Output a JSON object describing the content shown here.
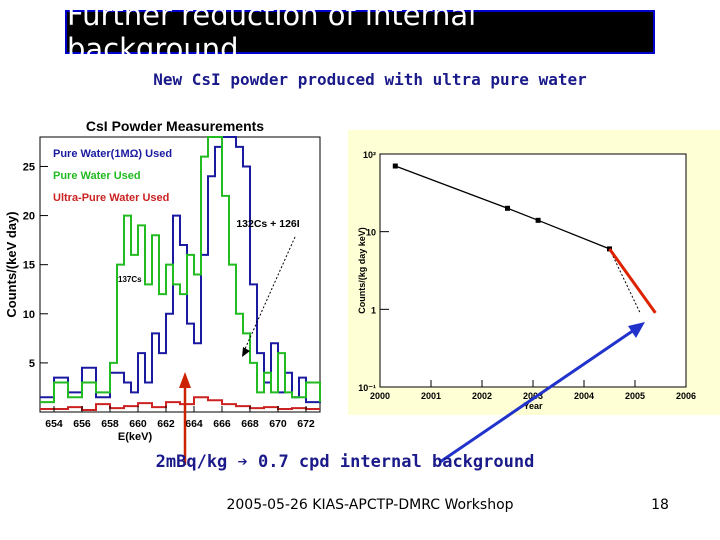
{
  "slide": {
    "title": "Further reduction of internal background",
    "subtitle": "New CsI powder produced with ultra pure water",
    "conclusion": "2mBq/kg ➔ 0.7 cpd internal background",
    "footer": "2005-05-26 KIAS-APCTP-DMRC Workshop",
    "page_number": "18"
  },
  "colors": {
    "title_bg": "#000000",
    "title_border": "#0000cc",
    "text_blue": "#1a1a8a",
    "arrow_red": "#cc2200",
    "arrow_blue": "#2233cc"
  },
  "chart_data": [
    {
      "type": "line",
      "title": "CsI Powder Measurements",
      "xlabel": "E(keV)",
      "ylabel": "Counts/(keV day)",
      "xlim": [
        653,
        673
      ],
      "ylim": [
        0,
        28
      ],
      "x_ticks": [
        "654",
        "656",
        "658",
        "660",
        "662",
        "664",
        "666",
        "668",
        "670",
        "672"
      ],
      "y_ticks": [
        "5",
        "10",
        "15",
        "20",
        "25"
      ],
      "legend_position": "top-left",
      "annotations": {
        "peak_label": "132Cs + 126I",
        "cs_label": "137Cs"
      },
      "series": [
        {
          "name": "Pure Water(1MΩ) Used",
          "color": "#1a1aa0",
          "x": [
            653,
            654,
            655,
            656,
            657,
            658,
            659,
            659.5,
            660,
            660.5,
            661,
            661.5,
            662,
            662.5,
            663,
            663.5,
            664,
            664.5,
            665,
            665.5,
            666,
            666.5,
            667,
            667.5,
            668,
            668.5,
            669,
            669.5,
            670,
            670.5,
            671,
            671.5,
            672,
            673
          ],
          "y": [
            1.5,
            3.5,
            2,
            4.5,
            1.5,
            4,
            3,
            2,
            6,
            3,
            8,
            6,
            10,
            20,
            17,
            9,
            7,
            16,
            24,
            27,
            28,
            28,
            27,
            25,
            13,
            6,
            3,
            7,
            2,
            4,
            1.5,
            3.5,
            1,
            2
          ]
        },
        {
          "name": "Pure Water Used",
          "color": "#22bb22",
          "x": [
            653,
            654,
            655,
            656,
            657,
            658,
            658.5,
            659,
            659.5,
            660,
            660.5,
            661,
            661.5,
            662,
            662.5,
            663,
            663.5,
            664,
            664.5,
            665,
            665.5,
            666,
            666.5,
            667,
            667.5,
            668,
            668.5,
            669,
            669.5,
            670,
            670.5,
            671,
            672,
            673
          ],
          "y": [
            1,
            3,
            1.5,
            3,
            2,
            5,
            15,
            20,
            16,
            19,
            13,
            18,
            12,
            15,
            13,
            12,
            16,
            14,
            26,
            28,
            28,
            22,
            15,
            10,
            8,
            5,
            2,
            4,
            2,
            6,
            2,
            1.5,
            3,
            1
          ]
        },
        {
          "name": "Ultra-Pure Water Used",
          "color": "#cc2222",
          "x": [
            653,
            654,
            655,
            656,
            657,
            658,
            659,
            660,
            661,
            662,
            663,
            664,
            665,
            666,
            667,
            668,
            669,
            670,
            671,
            672,
            673
          ],
          "y": [
            0.3,
            0.3,
            0.5,
            0.2,
            0.8,
            0.4,
            0.6,
            0.9,
            0.5,
            1.0,
            0.8,
            1.5,
            1.2,
            0.8,
            0.6,
            0.4,
            0.5,
            0.3,
            0.4,
            0.3,
            0.3
          ]
        }
      ]
    },
    {
      "type": "line",
      "title": "",
      "xlabel": "Year",
      "ylabel": "Counts/(kg day keV)",
      "xlim": [
        2000,
        2006
      ],
      "ylim": [
        0.1,
        100
      ],
      "y_scale": "log",
      "x_ticks": [
        "2000",
        "2001",
        "2002",
        "2003",
        "2004",
        "2005",
        "2006"
      ],
      "y_ticks": [
        "10⁻¹",
        "1",
        "10",
        "10²"
      ],
      "grid": false,
      "series": [
        {
          "color": "#000000",
          "x": [
            2000.3,
            2002.5,
            2003.1,
            2004.5
          ],
          "y": [
            70,
            20,
            14,
            6
          ]
        }
      ],
      "extrapolations": [
        {
          "style": "dotted",
          "x": [
            2004.5,
            2005.1
          ],
          "y": [
            6,
            0.9
          ]
        },
        {
          "style": "solid-red",
          "x": [
            2004.5,
            2005.4
          ],
          "y": [
            6,
            0.9
          ]
        }
      ]
    }
  ]
}
